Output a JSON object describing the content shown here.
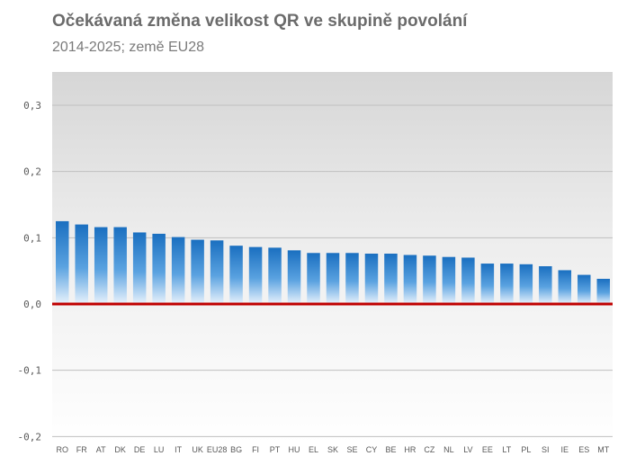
{
  "chart_data": {
    "type": "bar",
    "title": "Očekávaná změna velikost QR ve skupině povolání",
    "subtitle": "2014-2025; země EU28",
    "xlabel": "",
    "ylabel": "",
    "ylim": [
      -0.2,
      0.35
    ],
    "yticks": [
      0.3,
      0.2,
      0.1,
      0.0,
      -0.1,
      -0.2
    ],
    "ytick_labels": [
      "0,3",
      "0,2",
      "0,1",
      "0,0",
      "-0,1",
      "-0,2"
    ],
    "grid": true,
    "legend": "none",
    "categories": [
      "RO",
      "FR",
      "AT",
      "DK",
      "DE",
      "LU",
      "IT",
      "UK",
      "EU28",
      "BG",
      "FI",
      "PT",
      "HU",
      "EL",
      "SK",
      "SE",
      "CY",
      "BE",
      "HR",
      "CZ",
      "NL",
      "LV",
      "EE",
      "LT",
      "PL",
      "SI",
      "IE",
      "ES",
      "MT"
    ],
    "values": [
      0.125,
      0.12,
      0.116,
      0.116,
      0.108,
      0.106,
      0.101,
      0.097,
      0.096,
      0.088,
      0.086,
      0.085,
      0.081,
      0.077,
      0.077,
      0.077,
      0.076,
      0.076,
      0.074,
      0.073,
      0.071,
      0.07,
      0.061,
      0.061,
      0.06,
      0.057,
      0.051,
      0.044,
      0.038
    ],
    "colors": {
      "bar_top": "#1a73c4",
      "bar_bottom": "#e6f1fb",
      "zero_line": "#c00000",
      "grid": "#bfbfbf",
      "bg_top": "#d8d8d8",
      "bg_bottom": "#ffffff",
      "text": "#595959"
    }
  }
}
